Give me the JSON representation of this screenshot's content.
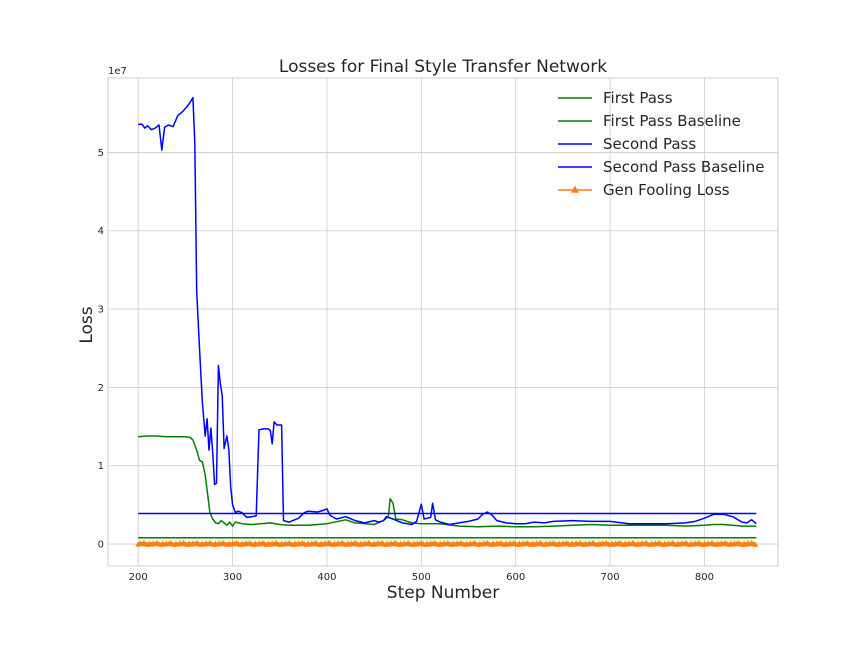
{
  "chart_data": {
    "type": "line",
    "title": "Losses for Final Style Transfer Network",
    "xlabel": "Step Number",
    "ylabel": "Loss",
    "y_offset_label": "1e7",
    "xlim": [
      168,
      878
    ],
    "ylim": [
      -0.28,
      5.95
    ],
    "y_scale_factor": 10000000,
    "xticks": [
      200,
      300,
      400,
      500,
      600,
      700,
      800
    ],
    "yticks": [
      0,
      1,
      2,
      3,
      4,
      5
    ],
    "grid": true,
    "legend_position": "top-right",
    "series": [
      {
        "name": "First Pass",
        "color": "#008000",
        "marker": "none",
        "points": [
          [
            200,
            1.37
          ],
          [
            210,
            1.38
          ],
          [
            220,
            1.38
          ],
          [
            230,
            1.37
          ],
          [
            240,
            1.37
          ],
          [
            250,
            1.37
          ],
          [
            255,
            1.36
          ],
          [
            258,
            1.33
          ],
          [
            262,
            1.2
          ],
          [
            265,
            1.07
          ],
          [
            268,
            1.05
          ],
          [
            271,
            0.88
          ],
          [
            274,
            0.6
          ],
          [
            276,
            0.4
          ],
          [
            279,
            0.32
          ],
          [
            282,
            0.27
          ],
          [
            285,
            0.26
          ],
          [
            288,
            0.3
          ],
          [
            291,
            0.27
          ],
          [
            294,
            0.24
          ],
          [
            297,
            0.28
          ],
          [
            300,
            0.23
          ],
          [
            303,
            0.28
          ],
          [
            310,
            0.26
          ],
          [
            320,
            0.25
          ],
          [
            330,
            0.26
          ],
          [
            340,
            0.27
          ],
          [
            350,
            0.25
          ],
          [
            360,
            0.24
          ],
          [
            380,
            0.24
          ],
          [
            400,
            0.26
          ],
          [
            420,
            0.31
          ],
          [
            430,
            0.27
          ],
          [
            450,
            0.25
          ],
          [
            460,
            0.3
          ],
          [
            465,
            0.35
          ],
          [
            467,
            0.58
          ],
          [
            470,
            0.52
          ],
          [
            473,
            0.32
          ],
          [
            480,
            0.31
          ],
          [
            490,
            0.27
          ],
          [
            500,
            0.26
          ],
          [
            520,
            0.26
          ],
          [
            540,
            0.23
          ],
          [
            560,
            0.22
          ],
          [
            580,
            0.23
          ],
          [
            600,
            0.22
          ],
          [
            620,
            0.22
          ],
          [
            640,
            0.23
          ],
          [
            660,
            0.24
          ],
          [
            680,
            0.25
          ],
          [
            700,
            0.24
          ],
          [
            720,
            0.24
          ],
          [
            740,
            0.24
          ],
          [
            760,
            0.24
          ],
          [
            780,
            0.23
          ],
          [
            800,
            0.24
          ],
          [
            810,
            0.25
          ],
          [
            820,
            0.25
          ],
          [
            830,
            0.24
          ],
          [
            840,
            0.23
          ],
          [
            855,
            0.23
          ]
        ]
      },
      {
        "name": "First Pass Baseline",
        "color": "#008000",
        "marker": "none",
        "points": [
          [
            200,
            0.08
          ],
          [
            855,
            0.08
          ]
        ]
      },
      {
        "name": "Second Pass",
        "color": "#0000ff",
        "marker": "none",
        "points": [
          [
            200,
            5.36
          ],
          [
            204,
            5.36
          ],
          [
            207,
            5.31
          ],
          [
            210,
            5.34
          ],
          [
            214,
            5.29
          ],
          [
            218,
            5.31
          ],
          [
            222,
            5.35
          ],
          [
            225,
            5.03
          ],
          [
            228,
            5.32
          ],
          [
            232,
            5.35
          ],
          [
            237,
            5.33
          ],
          [
            242,
            5.47
          ],
          [
            247,
            5.52
          ],
          [
            252,
            5.59
          ],
          [
            255,
            5.64
          ],
          [
            258,
            5.7
          ],
          [
            260,
            5.13
          ],
          [
            262,
            3.23
          ],
          [
            265,
            2.5
          ],
          [
            268,
            1.8
          ],
          [
            271,
            1.38
          ],
          [
            273,
            1.6
          ],
          [
            275,
            1.2
          ],
          [
            277,
            1.48
          ],
          [
            279,
            1.17
          ],
          [
            281,
            0.76
          ],
          [
            283,
            0.78
          ],
          [
            285,
            2.28
          ],
          [
            287,
            2.05
          ],
          [
            289,
            1.9
          ],
          [
            291,
            1.22
          ],
          [
            294,
            1.38
          ],
          [
            296,
            1.21
          ],
          [
            298,
            0.73
          ],
          [
            300,
            0.5
          ],
          [
            303,
            0.4
          ],
          [
            306,
            0.42
          ],
          [
            310,
            0.4
          ],
          [
            315,
            0.34
          ],
          [
            320,
            0.35
          ],
          [
            325,
            0.36
          ],
          [
            328,
            1.46
          ],
          [
            333,
            1.47
          ],
          [
            338,
            1.47
          ],
          [
            340,
            1.45
          ],
          [
            342,
            1.28
          ],
          [
            344,
            1.56
          ],
          [
            347,
            1.52
          ],
          [
            352,
            1.52
          ],
          [
            354,
            0.3
          ],
          [
            360,
            0.28
          ],
          [
            370,
            0.33
          ],
          [
            376,
            0.4
          ],
          [
            380,
            0.42
          ],
          [
            390,
            0.41
          ],
          [
            396,
            0.43
          ],
          [
            400,
            0.45
          ],
          [
            403,
            0.37
          ],
          [
            410,
            0.32
          ],
          [
            420,
            0.35
          ],
          [
            430,
            0.3
          ],
          [
            440,
            0.27
          ],
          [
            450,
            0.3
          ],
          [
            455,
            0.28
          ],
          [
            460,
            0.3
          ],
          [
            463,
            0.35
          ],
          [
            470,
            0.32
          ],
          [
            480,
            0.27
          ],
          [
            490,
            0.25
          ],
          [
            495,
            0.29
          ],
          [
            500,
            0.51
          ],
          [
            503,
            0.32
          ],
          [
            510,
            0.34
          ],
          [
            512,
            0.52
          ],
          [
            515,
            0.31
          ],
          [
            520,
            0.28
          ],
          [
            530,
            0.25
          ],
          [
            540,
            0.27
          ],
          [
            550,
            0.29
          ],
          [
            560,
            0.32
          ],
          [
            565,
            0.38
          ],
          [
            570,
            0.41
          ],
          [
            575,
            0.37
          ],
          [
            580,
            0.3
          ],
          [
            590,
            0.27
          ],
          [
            600,
            0.26
          ],
          [
            610,
            0.26
          ],
          [
            620,
            0.28
          ],
          [
            630,
            0.27
          ],
          [
            640,
            0.29
          ],
          [
            660,
            0.3
          ],
          [
            680,
            0.29
          ],
          [
            700,
            0.29
          ],
          [
            720,
            0.26
          ],
          [
            740,
            0.26
          ],
          [
            760,
            0.26
          ],
          [
            780,
            0.27
          ],
          [
            790,
            0.29
          ],
          [
            800,
            0.33
          ],
          [
            810,
            0.38
          ],
          [
            820,
            0.38
          ],
          [
            830,
            0.35
          ],
          [
            840,
            0.28
          ],
          [
            845,
            0.27
          ],
          [
            850,
            0.31
          ],
          [
            855,
            0.26
          ]
        ]
      },
      {
        "name": "Second Pass Baseline",
        "color": "#0000ff",
        "marker": "none",
        "points": [
          [
            200,
            0.39
          ],
          [
            855,
            0.39
          ]
        ]
      },
      {
        "name": "Gen Fooling Loss",
        "color": "#ff7f0e",
        "marker": "triangle",
        "points": [
          [
            200,
            0.0
          ],
          [
            855,
            0.0
          ]
        ]
      }
    ]
  }
}
